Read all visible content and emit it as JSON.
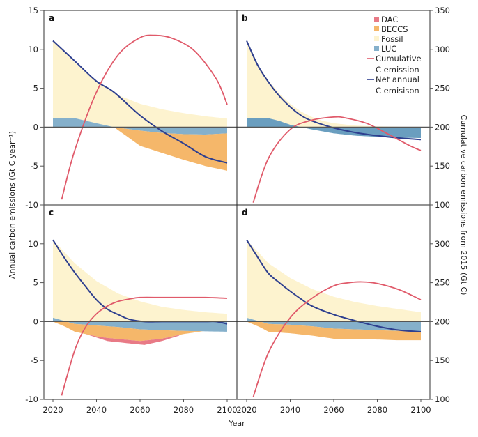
{
  "chart_data": {
    "type": "area",
    "xlabel": "Year",
    "ylabel_left": "Annual carbon emissions (Gt C year⁻¹)",
    "ylabel_right": "Cumulative carbon emissions from 2015 (Gt C)",
    "xlim": [
      2020,
      2100
    ],
    "ylim_left": [
      -10,
      15
    ],
    "ylim_right": [
      100,
      350
    ],
    "x_ticks": [
      "2020",
      "2040",
      "2060",
      "2080",
      "2100"
    ],
    "y_ticks_left_top": [
      "15",
      "10",
      "5",
      "0",
      "-5",
      "-10"
    ],
    "y_ticks_left_bottom": [
      "10",
      "5",
      "0",
      "-5",
      "-10"
    ],
    "y_ticks_right_top": [
      "350",
      "300",
      "250",
      "200",
      "150",
      "100"
    ],
    "y_ticks_right_bottom": [
      "300",
      "250",
      "200",
      "150",
      "100"
    ],
    "grid": false,
    "legend": {
      "position": "top-right (panel b)",
      "entries": [
        {
          "label": "DAC",
          "kind": "patch",
          "color": "#e87a86"
        },
        {
          "label": "BECCS",
          "kind": "patch",
          "color": "#f5b76a"
        },
        {
          "label": "Fossil",
          "kind": "patch",
          "color": "#fdf3cf"
        },
        {
          "label": "LUC",
          "kind": "patch",
          "color": "#85b0cb"
        },
        {
          "label": "Cumulative",
          "label2": "C emission",
          "kind": "line",
          "color": "#e05a6a"
        },
        {
          "label": "Net annual",
          "label2": "C emisison",
          "kind": "line",
          "color": "#2e3f8f"
        }
      ]
    },
    "colors": {
      "dac": "#e87a86",
      "beccs": "#f5b76a",
      "fossil": "#fdf3cf",
      "luc": "#85b0cb",
      "luc_b": "#6a9ebf",
      "cumulative": "#e05a6a",
      "net": "#2e3f8f"
    },
    "panels": [
      {
        "label": "a",
        "fossil_top": {
          "x": [
            2020,
            2030,
            2040,
            2050,
            2060,
            2070,
            2080,
            2090,
            2100
          ],
          "y": [
            11.1,
            8.3,
            5.8,
            4.1,
            3.0,
            2.3,
            1.8,
            1.4,
            1.1
          ]
        },
        "luc": {
          "x": [
            2020,
            2030,
            2040,
            2048,
            2060,
            2070,
            2080,
            2090,
            2100
          ],
          "y": [
            1.2,
            1.15,
            0.5,
            0.0,
            -0.45,
            -0.75,
            -0.9,
            -0.95,
            -0.8
          ]
        },
        "beccs_bottom": {
          "x": [
            2048,
            2060,
            2070,
            2080,
            2090,
            2100
          ],
          "y": [
            0.0,
            -2.4,
            -3.3,
            -4.2,
            -5.0,
            -5.6
          ]
        },
        "dac_bottom": null,
        "net": {
          "x": [
            2020,
            2030,
            2040,
            2048,
            2060,
            2070,
            2080,
            2090,
            2100
          ],
          "y": [
            11.1,
            8.5,
            5.9,
            4.5,
            1.5,
            -0.5,
            -2.1,
            -3.8,
            -4.6
          ]
        },
        "cumulative": {
          "x": [
            2024,
            2030,
            2040,
            2050,
            2060,
            2067,
            2075,
            2085,
            2095,
            2100
          ],
          "y": [
            107,
            170,
            245,
            293,
            315,
            318,
            314,
            298,
            262,
            229
          ]
        }
      },
      {
        "label": "b",
        "fossil_top": {
          "x": [
            2020,
            2025,
            2030,
            2035,
            2040,
            2045,
            2050,
            2055,
            2060,
            2070,
            2080,
            2100
          ],
          "y": [
            11.1,
            8.1,
            6.0,
            4.3,
            3.0,
            2.0,
            1.3,
            0.8,
            0.5,
            0.2,
            0.1,
            0.0
          ]
        },
        "luc": {
          "x": [
            2020,
            2030,
            2035,
            2040,
            2045,
            2050,
            2060,
            2070,
            2080,
            2090,
            2100
          ],
          "y": [
            1.2,
            1.15,
            0.8,
            0.3,
            0.0,
            -0.3,
            -0.8,
            -1.1,
            -1.25,
            -1.35,
            -1.4
          ]
        },
        "beccs_bottom": null,
        "dac_bottom": null,
        "net": {
          "x": [
            2020,
            2025,
            2030,
            2035,
            2040,
            2045,
            2050,
            2060,
            2070,
            2080,
            2090,
            2100
          ],
          "y": [
            11.1,
            8.0,
            5.8,
            4.0,
            2.6,
            1.5,
            0.8,
            -0.1,
            -0.7,
            -1.1,
            -1.4,
            -1.6
          ]
        },
        "cumulative": {
          "x": [
            2023,
            2030,
            2040,
            2050,
            2060,
            2065,
            2075,
            2085,
            2095,
            2100
          ],
          "y": [
            103,
            160,
            197,
            209,
            213,
            212,
            205,
            191,
            176,
            170
          ]
        }
      },
      {
        "label": "c",
        "fossil_top": {
          "x": [
            2020,
            2030,
            2040,
            2050,
            2060,
            2070,
            2080,
            2090,
            2100
          ],
          "y": [
            10.5,
            7.5,
            5.2,
            3.6,
            2.6,
            1.9,
            1.5,
            1.2,
            1.0
          ]
        },
        "luc": {
          "x": [
            2020,
            2030,
            2040,
            2050,
            2060,
            2070,
            2080,
            2090,
            2100
          ],
          "y": [
            0.5,
            -0.3,
            -0.5,
            -0.7,
            -1.0,
            -1.1,
            -1.2,
            -1.25,
            -1.3
          ]
        },
        "beccs_bottom": {
          "x": [
            2020,
            2026,
            2030,
            2040,
            2045,
            2060,
            2070,
            2080,
            2090,
            2100
          ],
          "y": [
            0.0,
            -0.7,
            -1.3,
            -1.9,
            -2.1,
            -2.5,
            -2.2,
            -1.6,
            -1.2,
            -1.1
          ]
        },
        "dac_bottom": {
          "x": [
            2030,
            2035,
            2045,
            2055,
            2062,
            2070,
            2078
          ],
          "y": [
            -1.3,
            -1.6,
            -2.5,
            -2.8,
            -3.0,
            -2.5,
            -1.8
          ]
        },
        "net": {
          "x": [
            2020,
            2025,
            2030,
            2035,
            2040,
            2045,
            2050,
            2055,
            2062,
            2070,
            2080,
            2090,
            2095,
            2100
          ],
          "y": [
            10.5,
            8.3,
            6.3,
            4.5,
            2.8,
            1.6,
            0.9,
            0.3,
            0.0,
            0.0,
            0.0,
            0.0,
            0.0,
            -0.3
          ]
        },
        "cumulative": {
          "x": [
            2024,
            2030,
            2035,
            2040,
            2045,
            2050,
            2055,
            2060,
            2070,
            2080,
            2090,
            2100
          ],
          "y": [
            105,
            163,
            193,
            210,
            220,
            226,
            229,
            231,
            231,
            231,
            231,
            230
          ]
        }
      },
      {
        "label": "d",
        "fossil_top": {
          "x": [
            2020,
            2030,
            2040,
            2050,
            2060,
            2070,
            2080,
            2090,
            2100
          ],
          "y": [
            10.5,
            7.5,
            5.6,
            4.2,
            3.2,
            2.5,
            2.0,
            1.6,
            1.2
          ]
        },
        "luc": {
          "x": [
            2020,
            2030,
            2040,
            2050,
            2060,
            2070,
            2080,
            2090,
            2100
          ],
          "y": [
            0.5,
            -0.3,
            -0.4,
            -0.6,
            -0.9,
            -1.0,
            -1.1,
            -1.2,
            -1.3
          ]
        },
        "beccs_bottom": {
          "x": [
            2020,
            2026,
            2030,
            2040,
            2050,
            2060,
            2070,
            2080,
            2090,
            2100
          ],
          "y": [
            0.0,
            -0.7,
            -1.3,
            -1.5,
            -1.8,
            -2.2,
            -2.2,
            -2.3,
            -2.4,
            -2.4
          ]
        },
        "dac_bottom": null,
        "net": {
          "x": [
            2020,
            2025,
            2030,
            2035,
            2040,
            2045,
            2050,
            2060,
            2070,
            2080,
            2090,
            2100
          ],
          "y": [
            10.5,
            8.3,
            6.2,
            5.0,
            3.9,
            2.9,
            2.0,
            0.9,
            0.1,
            -0.6,
            -1.1,
            -1.3
          ]
        },
        "cumulative": {
          "x": [
            2023,
            2030,
            2040,
            2050,
            2060,
            2067,
            2073,
            2080,
            2090,
            2100
          ],
          "y": [
            103,
            160,
            205,
            230,
            246,
            250,
            251,
            249,
            241,
            228
          ]
        }
      }
    ]
  }
}
